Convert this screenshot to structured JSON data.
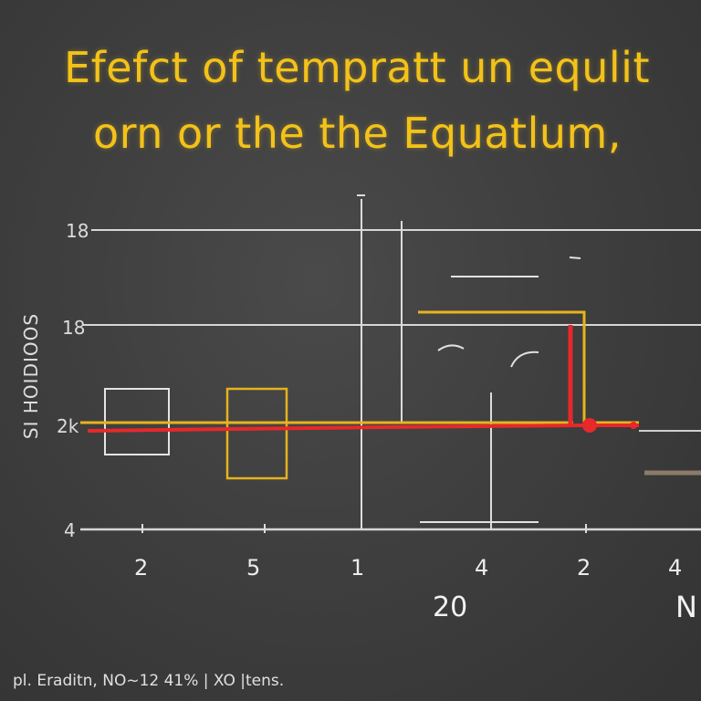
{
  "title": {
    "line1": "Efefct of tempratt un equlit",
    "line2": "orn or the the  Equatlum,"
  },
  "chart_data": {
    "type": "line",
    "title": "Efefct of tempratt un equlit orn or the the  Equatlum,",
    "ylabel": "SI HOIDIOOS",
    "xlabel": "20",
    "xlabel_right": "N",
    "x_ticks": [
      "2",
      "5",
      "1",
      "4",
      "2",
      "4"
    ],
    "y_ticks": [
      "18",
      "18",
      "2k",
      "4"
    ],
    "legend": "none",
    "grid": true,
    "colors": {
      "title": "#f3c21a",
      "grid": "#d8d8d8",
      "series_red": "#e8282a",
      "series_yellow": "#e8b41c",
      "box_white": "#e6e6e6"
    }
  },
  "footer": {
    "caption": "pl. Eraditn, NO~12 41% | XO |tens."
  }
}
